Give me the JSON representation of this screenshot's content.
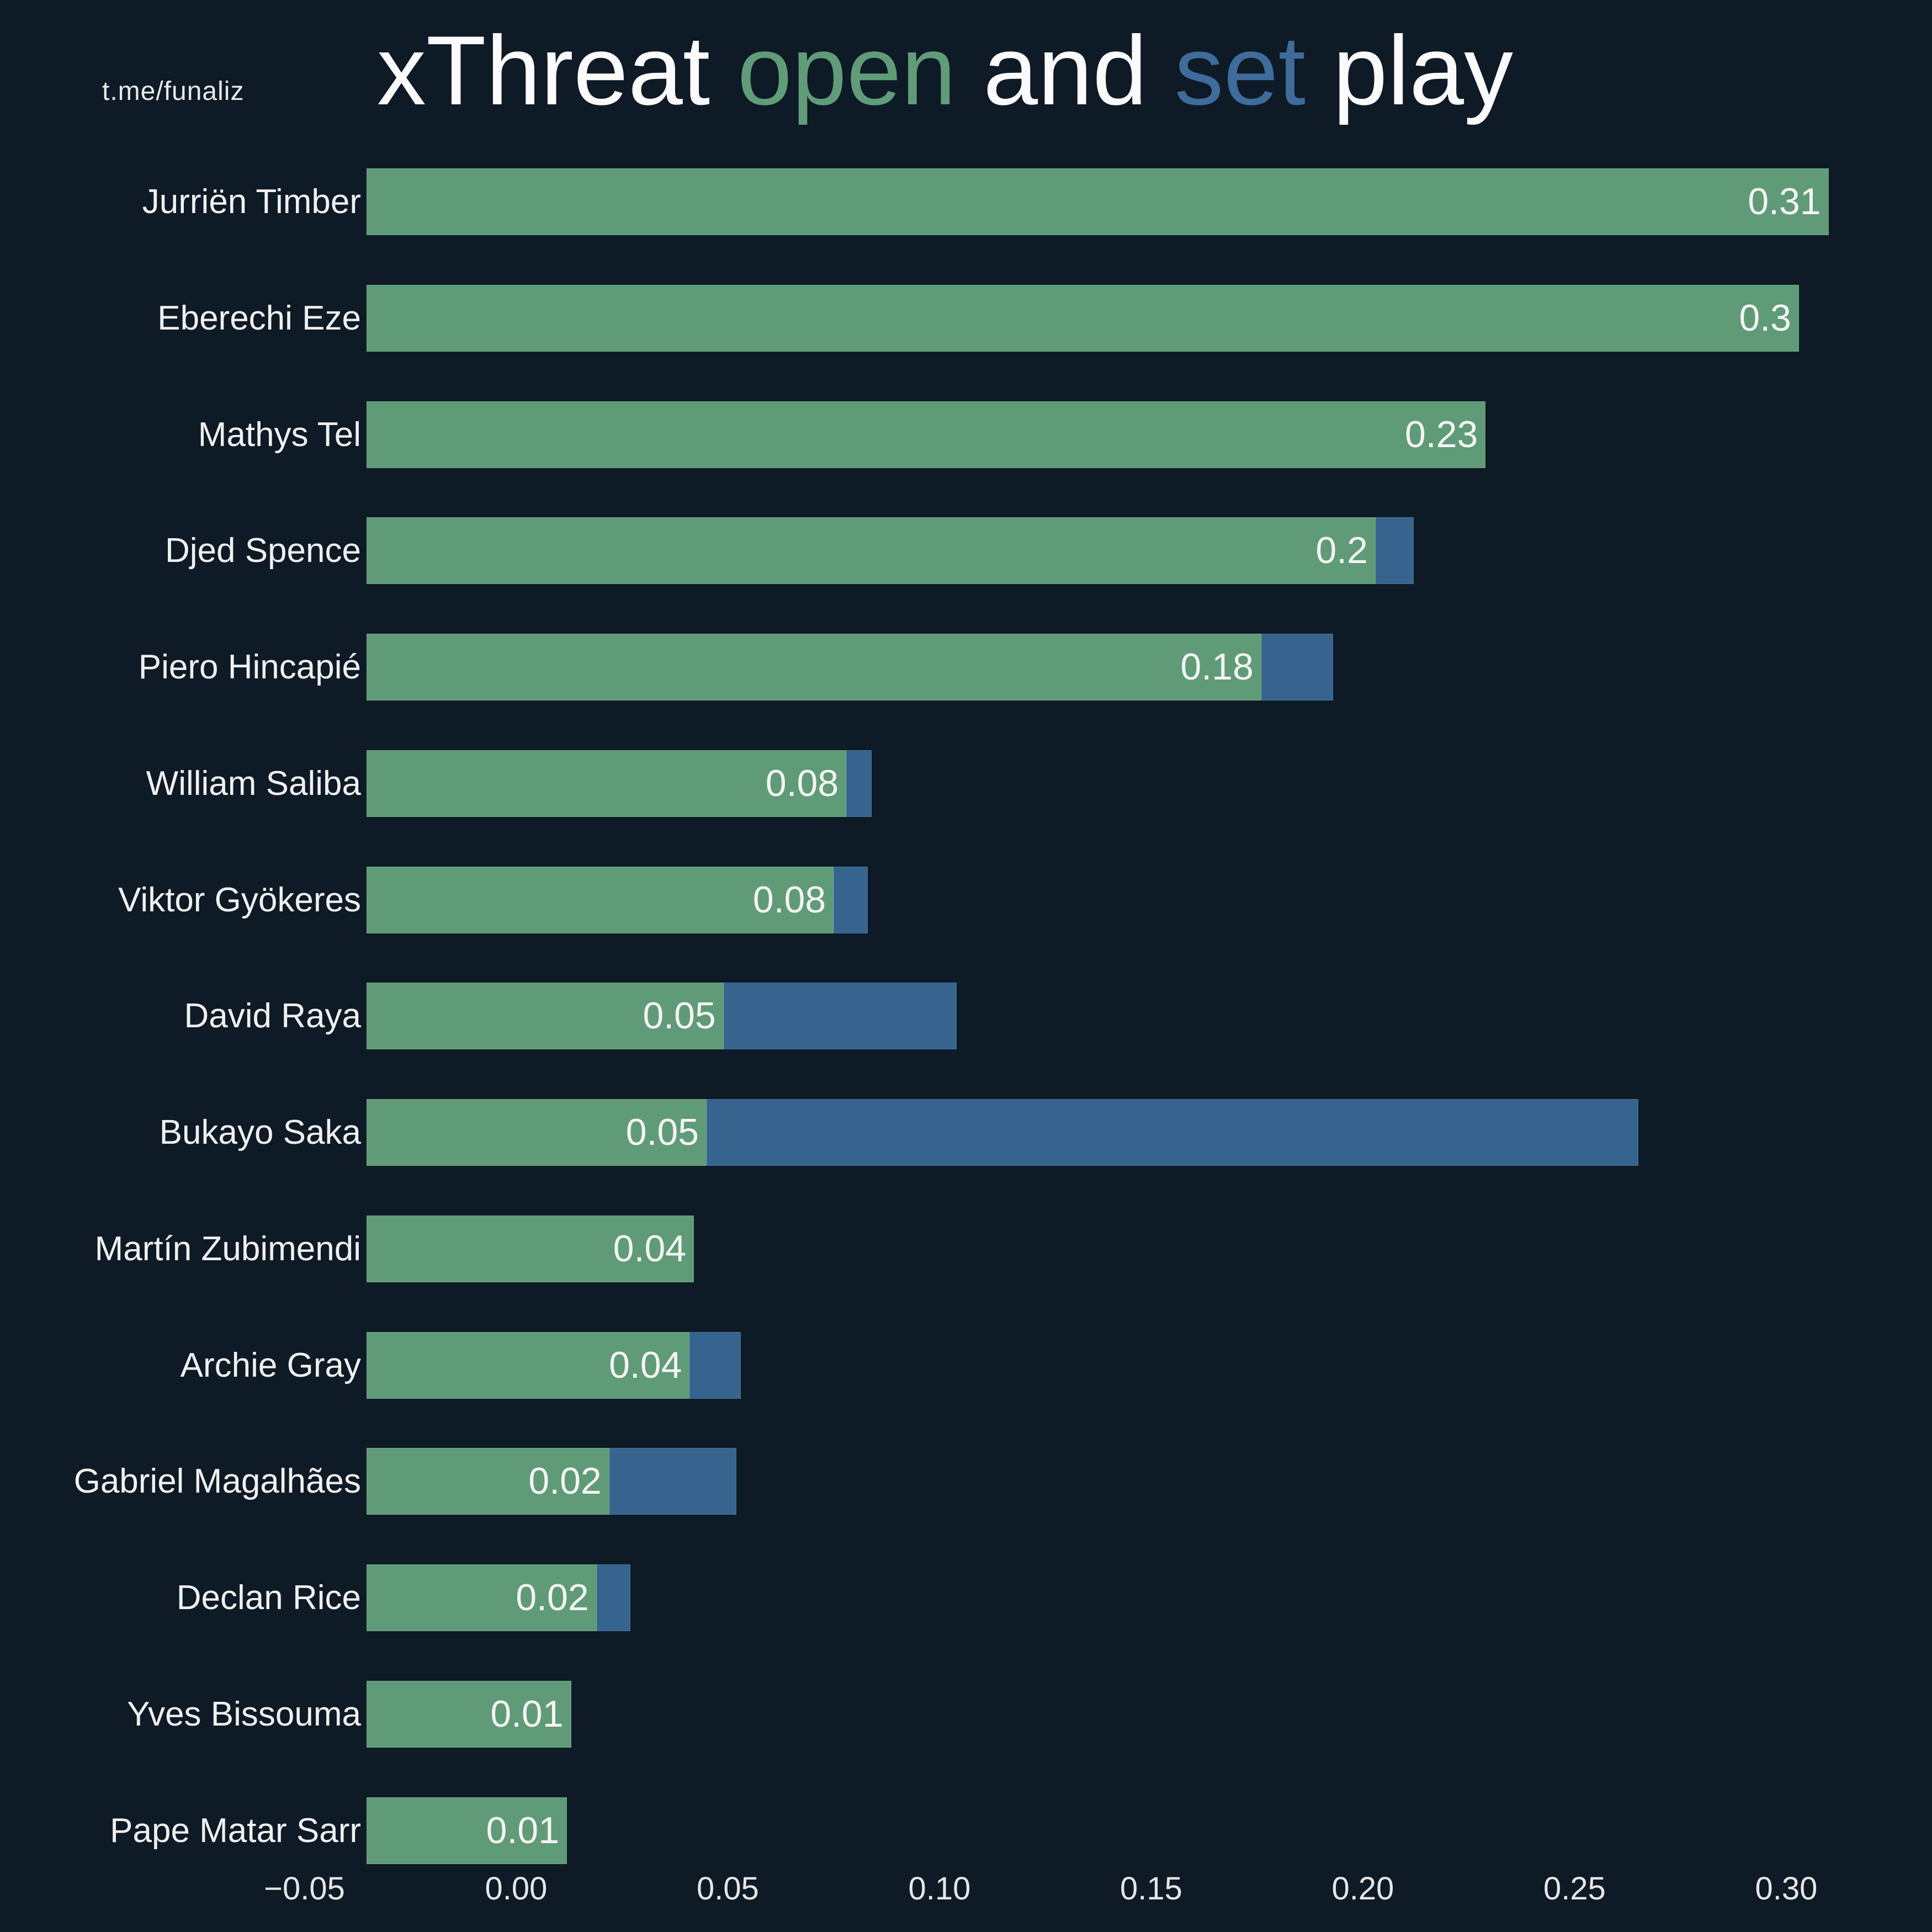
{
  "watermark": "t.me/funaliz",
  "title": {
    "text": "xThreat open and set play",
    "segments": [
      {
        "text": "xThreat ",
        "color": "#fafafa"
      },
      {
        "text": "open",
        "color": "#609c78"
      },
      {
        "text": " and ",
        "color": "#fafafa"
      },
      {
        "text": "set",
        "color": "#3e6c9b"
      },
      {
        "text": " play",
        "color": "#fafafa"
      }
    ]
  },
  "colors": {
    "background": "#0e1a25",
    "open_bar": "#5f9b77",
    "set_bar": "#36648e",
    "bar_value_text": "#f4f4f4",
    "player_label_text": "#f0f0f0",
    "axis_text": "#e6e6e6"
  },
  "chart_data": {
    "type": "bar",
    "orientation": "horizontal",
    "stacked": true,
    "title": "xThreat open and set play",
    "legend": "encoded in title words: open = green, set = blue",
    "grid": false,
    "categories": [
      "Jurriën Timber",
      "Eberechi Eze",
      "Mathys Tel",
      "Djed Spence",
      "Piero Hincapié",
      "William Saliba",
      "Viktor Gyökeres",
      "David Raya",
      "Bukayo Saka",
      "Martín Zubimendi",
      "Archie Gray",
      "Gabriel Magalhães",
      "Declan Rice",
      "Yves Bissouma",
      "Pape Matar Sarr"
    ],
    "series": [
      {
        "name": "open play xThreat",
        "color": "#5f9b77",
        "values": [
          0.31,
          0.3,
          0.23,
          0.2,
          0.18,
          0.08,
          0.08,
          0.05,
          0.05,
          0.04,
          0.04,
          0.02,
          0.02,
          0.01,
          0.01
        ],
        "values_precise": [
          0.31,
          0.303,
          0.229,
          0.203,
          0.176,
          0.078,
          0.075,
          0.049,
          0.045,
          0.042,
          0.041,
          0.022,
          0.019,
          0.013,
          0.012
        ]
      },
      {
        "name": "set play xThreat",
        "color": "#36648e",
        "values": [
          0,
          0,
          0,
          0.01,
          0.017,
          0.006,
          0.008,
          0.055,
          0.22,
          0,
          0.012,
          0.03,
          0.008,
          0,
          0
        ],
        "values_precise": [
          0,
          0,
          0,
          0.009,
          0.017,
          0.006,
          0.008,
          0.055,
          0.22,
          0,
          0.012,
          0.03,
          0.008,
          0,
          0
        ]
      }
    ],
    "bar_value_labels": [
      "0.31",
      "0.3",
      "0.23",
      "0.2",
      "0.18",
      "0.08",
      "0.08",
      "0.05",
      "0.05",
      "0.04",
      "0.04",
      "0.02",
      "0.02",
      "0.01",
      "0.01"
    ],
    "x_ticks": [
      "−0.05",
      "0.00",
      "0.05",
      "0.10",
      "0.15",
      "0.20",
      "0.25",
      "0.30"
    ],
    "x_tick_values": [
      -0.05,
      0.0,
      0.05,
      0.1,
      0.15,
      0.2,
      0.25,
      0.3
    ],
    "xlim": [
      -0.035,
      0.335
    ],
    "bar_base": -0.035,
    "xlabel": "",
    "ylabel": ""
  }
}
